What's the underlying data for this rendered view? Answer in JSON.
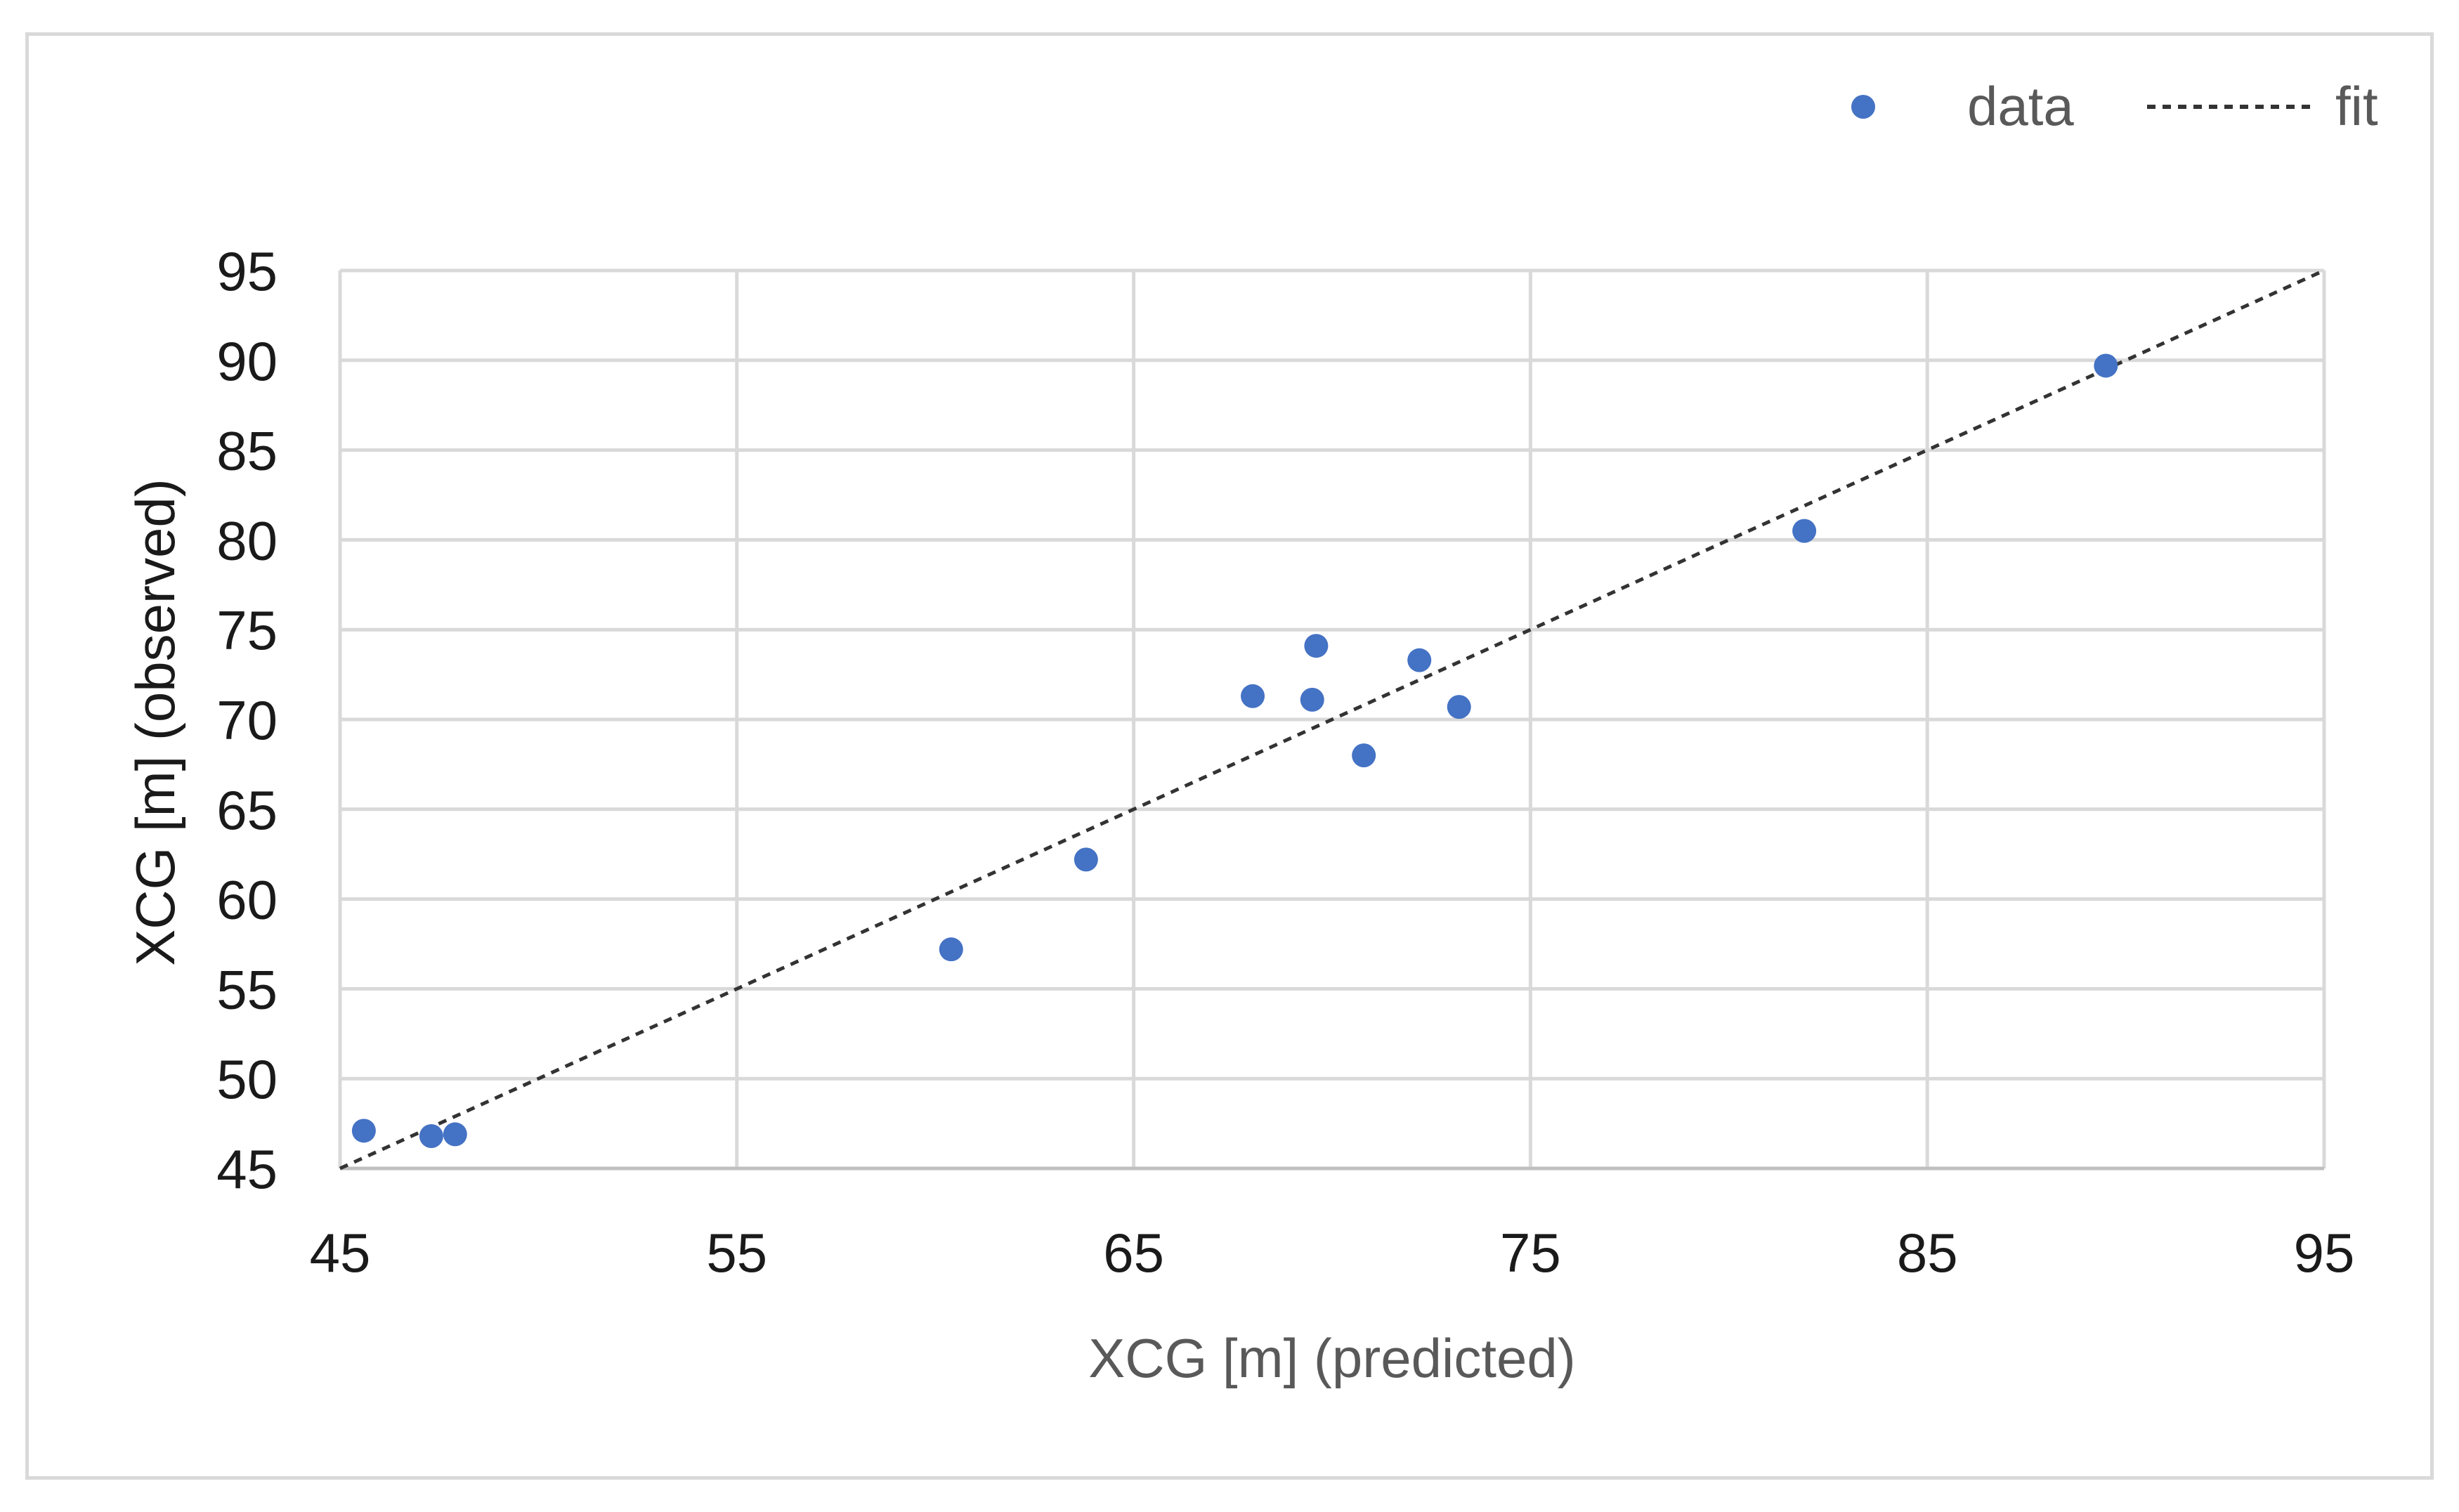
{
  "chart_data": {
    "type": "scatter",
    "xlabel": "XCG [m] (predicted)",
    "ylabel": "XCG [m] (observed)",
    "xlim": [
      45,
      95
    ],
    "ylim": [
      45,
      95
    ],
    "xticks": [
      45,
      55,
      65,
      75,
      85,
      95
    ],
    "yticks": [
      45,
      50,
      55,
      60,
      65,
      70,
      75,
      80,
      85,
      90,
      95
    ],
    "grid": true,
    "legend_position": "top-right",
    "series": [
      {
        "name": "data",
        "kind": "markers",
        "color": "#4472c4",
        "points": [
          {
            "x": 45.6,
            "y": 47.1
          },
          {
            "x": 47.3,
            "y": 46.8
          },
          {
            "x": 47.9,
            "y": 46.9
          },
          {
            "x": 60.4,
            "y": 57.2
          },
          {
            "x": 63.8,
            "y": 62.2
          },
          {
            "x": 68.0,
            "y": 71.3
          },
          {
            "x": 69.6,
            "y": 74.1
          },
          {
            "x": 69.5,
            "y": 71.1
          },
          {
            "x": 70.8,
            "y": 68.0
          },
          {
            "x": 72.2,
            "y": 73.3
          },
          {
            "x": 73.2,
            "y": 70.7
          },
          {
            "x": 81.9,
            "y": 80.5
          },
          {
            "x": 89.5,
            "y": 89.7
          }
        ]
      },
      {
        "name": "fit",
        "kind": "dashed-line",
        "color": "#333333",
        "points": [
          {
            "x": 45,
            "y": 45
          },
          {
            "x": 95,
            "y": 95
          }
        ]
      }
    ]
  }
}
